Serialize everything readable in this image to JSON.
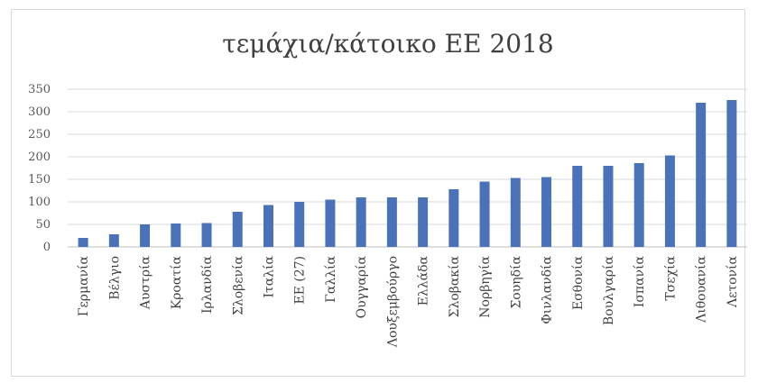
{
  "chart_data": {
    "type": "bar",
    "title": "τεμάχια/κάτοικο ΕΕ 2018",
    "xlabel": "",
    "ylabel": "",
    "ylim": [
      0,
      350
    ],
    "yticks": [
      0,
      50,
      100,
      150,
      200,
      250,
      300,
      350
    ],
    "grid": true,
    "legend": "none",
    "bar_color": "#4a72b8",
    "categories": [
      "Γερμανία",
      "Βέλγιο",
      "Αυστρία",
      "Κροατία",
      "Ιρλανδία",
      "Σλοβενία",
      "Ιταλία",
      "ΕΕ (27)",
      "Γαλλία",
      "Ουγγαρία",
      "Λουξεμβούργο",
      "Ελλάδα",
      "Σλοβακία",
      "Νορβηγία",
      "Σουηδία",
      "Φινλανδία",
      "Εσθονία",
      "Βουλγαρία",
      "Ισπανία",
      "Τσεχία",
      "Λιθουανία",
      "Λετονία"
    ],
    "values": [
      20,
      28,
      50,
      52,
      53,
      78,
      93,
      100,
      105,
      110,
      110,
      110,
      128,
      145,
      153,
      155,
      180,
      180,
      186,
      203,
      320,
      326
    ]
  }
}
